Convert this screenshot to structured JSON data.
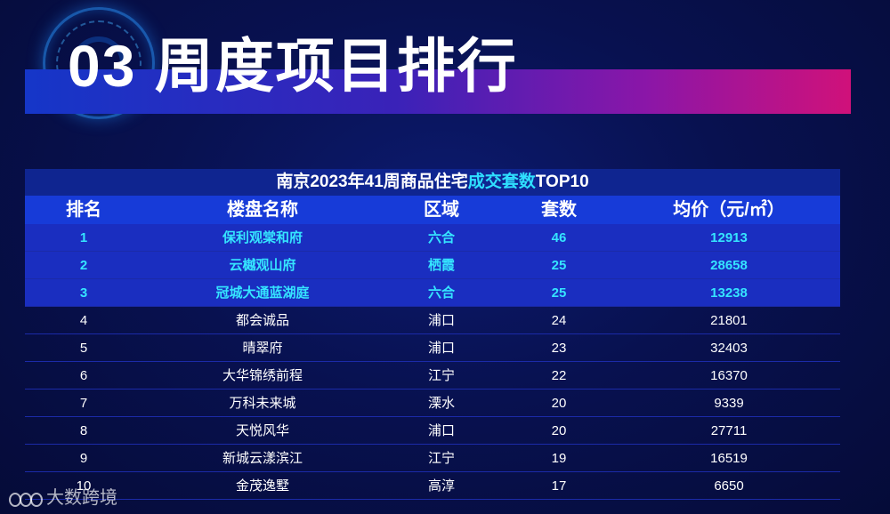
{
  "header": {
    "title": "03 周度项目排行"
  },
  "table": {
    "caption_main": "南京2023年41周商品住宅",
    "caption_highlight": "成交套数",
    "caption_suffix": "TOP10",
    "columns": [
      "排名",
      "楼盘名称",
      "区域",
      "套数",
      "均价（元/㎡）"
    ],
    "rows": [
      [
        "1",
        "保利观棠和府",
        "六合",
        "46",
        "12913"
      ],
      [
        "2",
        "云樾观山府",
        "栖霞",
        "25",
        "28658"
      ],
      [
        "3",
        "冠城大通蓝湖庭",
        "六合",
        "25",
        "13238"
      ],
      [
        "4",
        "都会诚品",
        "浦口",
        "24",
        "21801"
      ],
      [
        "5",
        "晴翠府",
        "浦口",
        "23",
        "32403"
      ],
      [
        "6",
        "大华锦绣前程",
        "江宁",
        "22",
        "16370"
      ],
      [
        "7",
        "万科未来城",
        "溧水",
        "20",
        "9339"
      ],
      [
        "8",
        "天悦风华",
        "浦口",
        "20",
        "27711"
      ],
      [
        "9",
        "新城云漾滨江",
        "江宁",
        "19",
        "16519"
      ],
      [
        "10",
        "金茂逸墅",
        "高淳",
        "17",
        "6650"
      ]
    ]
  },
  "watermark": {
    "text": "大数跨境"
  },
  "colors": {
    "highlight": "#2fe0ff",
    "header_row": "#173bd8",
    "band_start": "#1536c8",
    "band_end": "#d0117a"
  }
}
